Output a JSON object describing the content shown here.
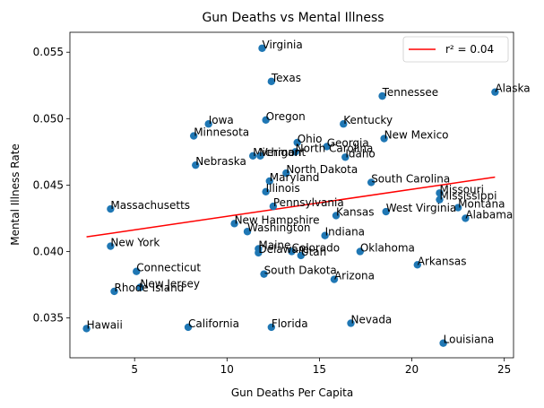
{
  "chart_data": {
    "type": "scatter",
    "title": "Gun Deaths vs Mental Illness",
    "xlabel": "Gun Deaths Per Capita",
    "ylabel": "Mental Illness Rate",
    "xlim": [
      1.5,
      25.5
    ],
    "ylim": [
      0.032,
      0.0565
    ],
    "xticks": [
      5,
      10,
      15,
      20,
      25
    ],
    "yticks": [
      0.035,
      0.04,
      0.045,
      0.05,
      0.055
    ],
    "ytick_labels": [
      "0.035",
      "0.040",
      "0.045",
      "0.050",
      "0.055"
    ],
    "grid": false,
    "point_color": "#1f77b4",
    "points": [
      {
        "label": "Virginia",
        "x": 11.9,
        "y": 0.0553
      },
      {
        "label": "Texas",
        "x": 12.4,
        "y": 0.0528
      },
      {
        "label": "Tennessee",
        "x": 18.4,
        "y": 0.0517
      },
      {
        "label": "Alaska",
        "x": 24.5,
        "y": 0.052
      },
      {
        "label": "Iowa",
        "x": 9.0,
        "y": 0.0496
      },
      {
        "label": "Oregon",
        "x": 12.1,
        "y": 0.0499
      },
      {
        "label": "Kentucky",
        "x": 16.3,
        "y": 0.0496
      },
      {
        "label": "Minnesota",
        "x": 8.2,
        "y": 0.0487
      },
      {
        "label": "New Mexico",
        "x": 18.5,
        "y": 0.0485
      },
      {
        "label": "Ohio",
        "x": 13.8,
        "y": 0.0482
      },
      {
        "label": "Georgia",
        "x": 15.4,
        "y": 0.0479
      },
      {
        "label": "North Carolina",
        "x": 13.7,
        "y": 0.0475
      },
      {
        "label": "Idaho",
        "x": 16.4,
        "y": 0.0471
      },
      {
        "label": "Michigan",
        "x": 11.4,
        "y": 0.0472
      },
      {
        "label": "Vermont",
        "x": 11.8,
        "y": 0.0472
      },
      {
        "label": "Nebraska",
        "x": 8.3,
        "y": 0.0465
      },
      {
        "label": "North Dakota",
        "x": 13.2,
        "y": 0.0459
      },
      {
        "label": "Maryland",
        "x": 12.3,
        "y": 0.0453
      },
      {
        "label": "South Carolina",
        "x": 17.8,
        "y": 0.0452
      },
      {
        "label": "Illinois",
        "x": 12.1,
        "y": 0.0445
      },
      {
        "label": "Missouri",
        "x": 21.5,
        "y": 0.0444
      },
      {
        "label": "Mississippi",
        "x": 21.5,
        "y": 0.0439
      },
      {
        "label": "Montana",
        "x": 22.5,
        "y": 0.0433
      },
      {
        "label": "Massachusetts",
        "x": 3.7,
        "y": 0.0432
      },
      {
        "label": "Pennsylvania",
        "x": 12.5,
        "y": 0.0434
      },
      {
        "label": "West Virginia",
        "x": 18.6,
        "y": 0.043
      },
      {
        "label": "Alabama",
        "x": 22.9,
        "y": 0.0425
      },
      {
        "label": "Kansas",
        "x": 15.9,
        "y": 0.0427
      },
      {
        "label": "New Hampshire",
        "x": 10.4,
        "y": 0.0421
      },
      {
        "label": "Washington",
        "x": 11.1,
        "y": 0.0415
      },
      {
        "label": "Indiana",
        "x": 15.3,
        "y": 0.0412
      },
      {
        "label": "New York",
        "x": 3.7,
        "y": 0.0404
      },
      {
        "label": "Maine",
        "x": 11.7,
        "y": 0.0402
      },
      {
        "label": "Delaware",
        "x": 11.7,
        "y": 0.0399
      },
      {
        "label": "Colorado",
        "x": 13.5,
        "y": 0.04
      },
      {
        "label": "Utah",
        "x": 14.0,
        "y": 0.0397
      },
      {
        "label": "Oklahoma",
        "x": 17.2,
        "y": 0.04
      },
      {
        "label": "Arkansas",
        "x": 20.3,
        "y": 0.039
      },
      {
        "label": "Connecticut",
        "x": 5.1,
        "y": 0.0385
      },
      {
        "label": "South Dakota",
        "x": 12.0,
        "y": 0.0383
      },
      {
        "label": "Arizona",
        "x": 15.8,
        "y": 0.0379
      },
      {
        "label": "New Jersey",
        "x": 5.3,
        "y": 0.0373
      },
      {
        "label": "Rhode Island",
        "x": 3.9,
        "y": 0.037
      },
      {
        "label": "Nevada",
        "x": 16.7,
        "y": 0.0346
      },
      {
        "label": "Hawaii",
        "x": 2.4,
        "y": 0.0342
      },
      {
        "label": "California",
        "x": 7.9,
        "y": 0.0343
      },
      {
        "label": "Florida",
        "x": 12.4,
        "y": 0.0343
      },
      {
        "label": "Louisiana",
        "x": 21.7,
        "y": 0.0331
      }
    ],
    "fit_line": {
      "color": "#ff0000",
      "legend_label": "r² = 0.04",
      "x": [
        2.4,
        24.5
      ],
      "y": [
        0.0411,
        0.0456
      ]
    },
    "legend_position": "top-right"
  }
}
